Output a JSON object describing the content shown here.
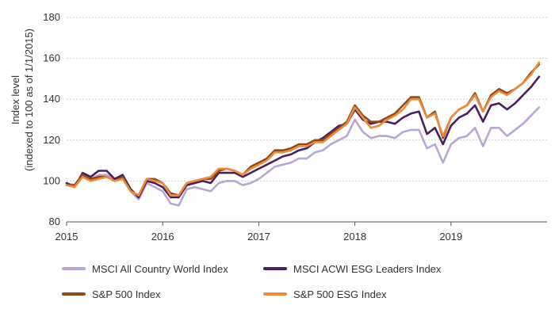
{
  "chart_data": {
    "type": "line",
    "title": "",
    "xlabel": "",
    "ylabel": [
      "Index level",
      "(indexed to 100 as of 1/1/2015)"
    ],
    "ylim": [
      80,
      180
    ],
    "yticks": [
      80,
      100,
      120,
      140,
      160,
      180
    ],
    "xlim": [
      2015,
      2020
    ],
    "xticks": [
      "2015",
      "2016",
      "2017",
      "2018",
      "2019"
    ],
    "grid": true,
    "legend_position": "bottom",
    "x": [
      2015.0,
      2015.083,
      2015.167,
      2015.25,
      2015.333,
      2015.417,
      2015.5,
      2015.583,
      2015.667,
      2015.75,
      2015.833,
      2015.917,
      2016.0,
      2016.083,
      2016.167,
      2016.25,
      2016.333,
      2016.417,
      2016.5,
      2016.583,
      2016.667,
      2016.75,
      2016.833,
      2016.917,
      2017.0,
      2017.083,
      2017.167,
      2017.25,
      2017.333,
      2017.417,
      2017.5,
      2017.583,
      2017.667,
      2017.75,
      2017.833,
      2017.917,
      2018.0,
      2018.083,
      2018.167,
      2018.25,
      2018.333,
      2018.417,
      2018.5,
      2018.583,
      2018.667,
      2018.75,
      2018.833,
      2018.917,
      2019.0,
      2019.083,
      2019.167,
      2019.25,
      2019.333,
      2019.417,
      2019.5,
      2019.583,
      2019.667,
      2019.75,
      2019.833,
      2019.917
    ],
    "series": [
      {
        "name": "MSCI All Country World Index",
        "color": "#b8a6d4",
        "values": [
          99,
          98,
          103,
          101,
          103,
          103,
          101,
          102,
          95,
          91,
          99,
          97,
          95,
          89,
          88,
          96,
          97,
          96,
          95,
          99,
          100,
          100,
          98,
          99,
          101,
          104,
          107,
          108,
          109,
          111,
          111,
          114,
          115,
          118,
          120,
          122,
          130,
          124,
          121,
          122,
          122,
          121,
          124,
          125,
          125,
          116,
          118,
          109,
          118,
          121,
          122,
          126,
          117,
          126,
          126,
          122,
          125,
          128,
          132,
          136
        ]
      },
      {
        "name": "MSCI ACWI ESG Leaders Index",
        "color": "#4a1f5e",
        "values": [
          99,
          97,
          104,
          102,
          105,
          105,
          101,
          103,
          96,
          92,
          100,
          99,
          97,
          92,
          92,
          98,
          99,
          100,
          99,
          104,
          104,
          104,
          102,
          104,
          106,
          108,
          110,
          112,
          113,
          115,
          116,
          119,
          121,
          124,
          127,
          128,
          135,
          130,
          128,
          129,
          129,
          128,
          131,
          133,
          134,
          123,
          126,
          118,
          127,
          131,
          133,
          137,
          129,
          137,
          138,
          135,
          138,
          142,
          146,
          151
        ]
      },
      {
        "name": "S&P 500 Index",
        "color": "#8e4a1c",
        "values": [
          98,
          98,
          103,
          101,
          102,
          102,
          100,
          102,
          95,
          93,
          101,
          101,
          99,
          94,
          93,
          99,
          100,
          101,
          101,
          105,
          106,
          105,
          103,
          107,
          109,
          111,
          115,
          115,
          116,
          118,
          118,
          120,
          120,
          123,
          126,
          129,
          137,
          132,
          129,
          129,
          131,
          133,
          137,
          141,
          141,
          131,
          134,
          121,
          131,
          135,
          137,
          143,
          134,
          142,
          145,
          143,
          145,
          148,
          153,
          157
        ]
      },
      {
        "name": "S&P 500 ESG Index",
        "color": "#ee8b3a",
        "values": [
          98,
          97,
          102,
          100,
          101,
          102,
          100,
          101,
          95,
          93,
          101,
          100,
          99,
          93,
          93,
          99,
          100,
          101,
          102,
          106,
          106,
          105,
          103,
          106,
          108,
          110,
          114,
          114,
          115,
          117,
          117,
          119,
          119,
          122,
          125,
          128,
          136,
          131,
          126,
          127,
          130,
          132,
          135,
          140,
          140,
          131,
          133,
          122,
          131,
          135,
          137,
          142,
          134,
          141,
          144,
          142,
          145,
          148,
          152,
          158
        ]
      }
    ]
  }
}
